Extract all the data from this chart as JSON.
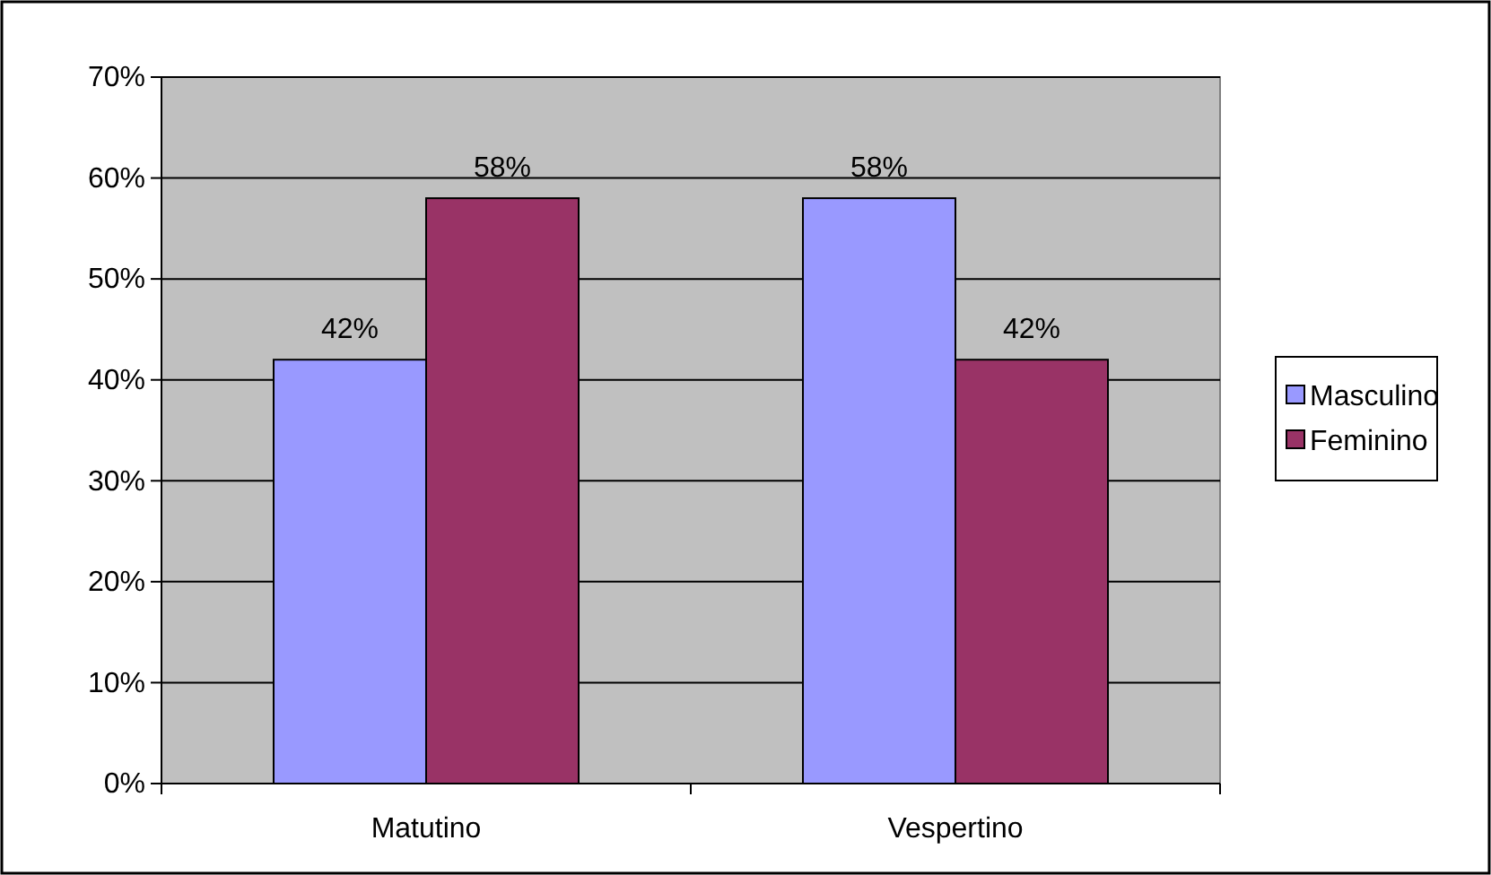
{
  "chart_data": {
    "type": "bar",
    "categories": [
      "Matutino",
      "Vespertino"
    ],
    "series": [
      {
        "name": "Masculino",
        "color": "#9999ff",
        "values": [
          42,
          58
        ],
        "value_labels": [
          "42%",
          "58%"
        ]
      },
      {
        "name": "Feminino",
        "color": "#993366",
        "values": [
          58,
          42
        ],
        "value_labels": [
          "58%",
          "42%"
        ]
      }
    ],
    "ylim": [
      0,
      70
    ],
    "yticks": [
      {
        "value": 0,
        "label": "0%"
      },
      {
        "value": 10,
        "label": "10%"
      },
      {
        "value": 20,
        "label": "20%"
      },
      {
        "value": 30,
        "label": "30%"
      },
      {
        "value": 40,
        "label": "40%"
      },
      {
        "value": 50,
        "label": "50%"
      },
      {
        "value": 60,
        "label": "60%"
      },
      {
        "value": 70,
        "label": "70%"
      }
    ],
    "grid": "y",
    "legend": "right"
  }
}
